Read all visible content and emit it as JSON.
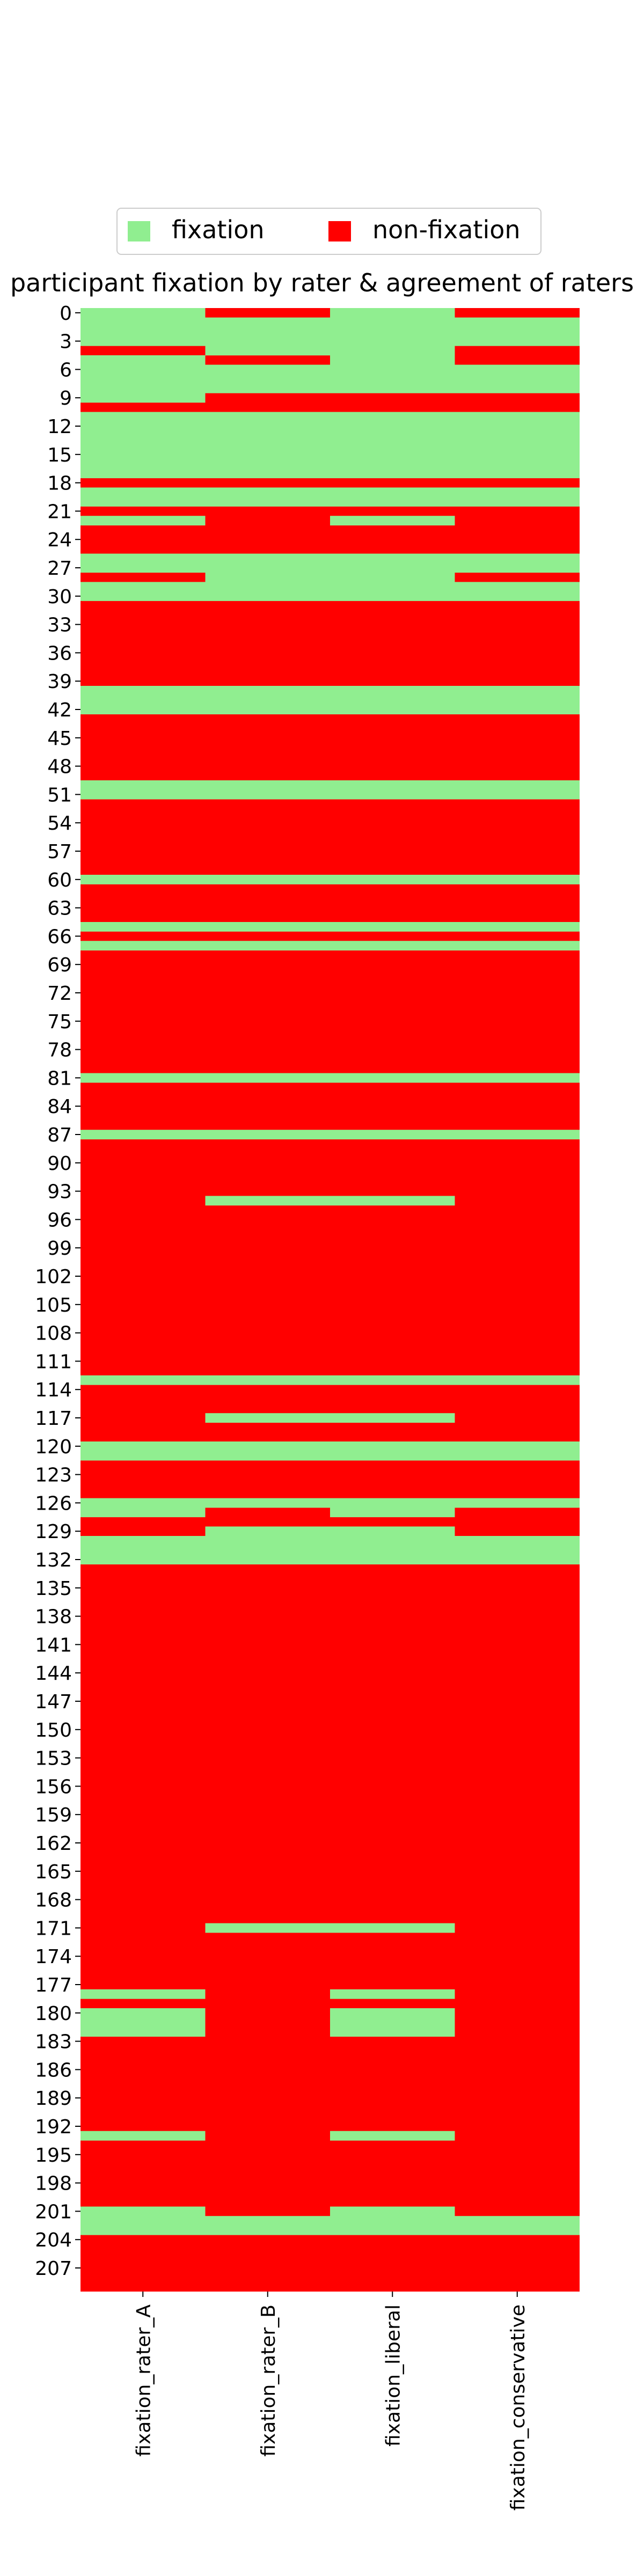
{
  "chart_data": {
    "type": "heatmap",
    "title": "participant fixation by rater & agreement of raters",
    "legend": {
      "placement": "top-center",
      "entries": [
        {
          "label": "fixation",
          "color": "#90ee90",
          "value": 1
        },
        {
          "label": "non-fixation",
          "color": "#ff0000",
          "value": 0
        }
      ]
    },
    "columns": [
      "fixation_rater_A",
      "fixation_rater_B",
      "fixation_liberal",
      "fixation_conservative"
    ],
    "row_count": 210,
    "y_tick_labels": [
      "0",
      "3",
      "6",
      "9",
      "12",
      "15",
      "18",
      "21",
      "24",
      "27",
      "30",
      "33",
      "36",
      "39",
      "42",
      "45",
      "48",
      "51",
      "54",
      "57",
      "60",
      "63",
      "66",
      "69",
      "72",
      "75",
      "78",
      "81",
      "84",
      "87",
      "90",
      "93",
      "96",
      "99",
      "102",
      "105",
      "108",
      "111",
      "114",
      "117",
      "120",
      "123",
      "126",
      "129",
      "132",
      "135",
      "138",
      "141",
      "144",
      "147",
      "150",
      "153",
      "156",
      "159",
      "162",
      "165",
      "168",
      "171",
      "174",
      "177",
      "180",
      "183",
      "186",
      "189",
      "192",
      "195",
      "198",
      "201",
      "204",
      "207"
    ],
    "fixation_rows": {
      "fixation_rater_A": [
        [
          0,
          3
        ],
        [
          5,
          9
        ],
        [
          11,
          17
        ],
        [
          19,
          20
        ],
        [
          22,
          22
        ],
        [
          26,
          27
        ],
        [
          29,
          30
        ],
        [
          40,
          42
        ],
        [
          50,
          51
        ],
        [
          60,
          60
        ],
        [
          65,
          65
        ],
        [
          67,
          67
        ],
        [
          81,
          81
        ],
        [
          87,
          87
        ],
        [
          113,
          113
        ],
        [
          120,
          121
        ],
        [
          126,
          127
        ],
        [
          130,
          132
        ],
        [
          178,
          178
        ],
        [
          180,
          182
        ],
        [
          193,
          193
        ],
        [
          201,
          203
        ]
      ],
      "fixation_rater_B": [
        [
          1,
          4
        ],
        [
          6,
          8
        ],
        [
          11,
          17
        ],
        [
          19,
          20
        ],
        [
          26,
          30
        ],
        [
          40,
          42
        ],
        [
          50,
          51
        ],
        [
          60,
          60
        ],
        [
          65,
          65
        ],
        [
          67,
          67
        ],
        [
          81,
          81
        ],
        [
          87,
          87
        ],
        [
          94,
          94
        ],
        [
          113,
          113
        ],
        [
          117,
          117
        ],
        [
          120,
          121
        ],
        [
          126,
          126
        ],
        [
          129,
          132
        ],
        [
          171,
          171
        ],
        [
          202,
          203
        ]
      ],
      "fixation_liberal": [
        [
          0,
          8
        ],
        [
          11,
          17
        ],
        [
          19,
          20
        ],
        [
          22,
          22
        ],
        [
          26,
          30
        ],
        [
          40,
          42
        ],
        [
          50,
          51
        ],
        [
          60,
          60
        ],
        [
          65,
          65
        ],
        [
          67,
          67
        ],
        [
          81,
          81
        ],
        [
          87,
          87
        ],
        [
          94,
          94
        ],
        [
          113,
          113
        ],
        [
          117,
          117
        ],
        [
          120,
          121
        ],
        [
          126,
          127
        ],
        [
          129,
          132
        ],
        [
          171,
          171
        ],
        [
          178,
          178
        ],
        [
          180,
          182
        ],
        [
          193,
          193
        ],
        [
          201,
          203
        ]
      ],
      "fixation_conservative": [
        [
          1,
          3
        ],
        [
          6,
          8
        ],
        [
          11,
          17
        ],
        [
          19,
          20
        ],
        [
          26,
          27
        ],
        [
          29,
          30
        ],
        [
          40,
          42
        ],
        [
          50,
          51
        ],
        [
          60,
          60
        ],
        [
          65,
          65
        ],
        [
          67,
          67
        ],
        [
          81,
          81
        ],
        [
          87,
          87
        ],
        [
          113,
          113
        ],
        [
          120,
          121
        ],
        [
          126,
          126
        ],
        [
          130,
          132
        ],
        [
          202,
          203
        ]
      ]
    }
  }
}
